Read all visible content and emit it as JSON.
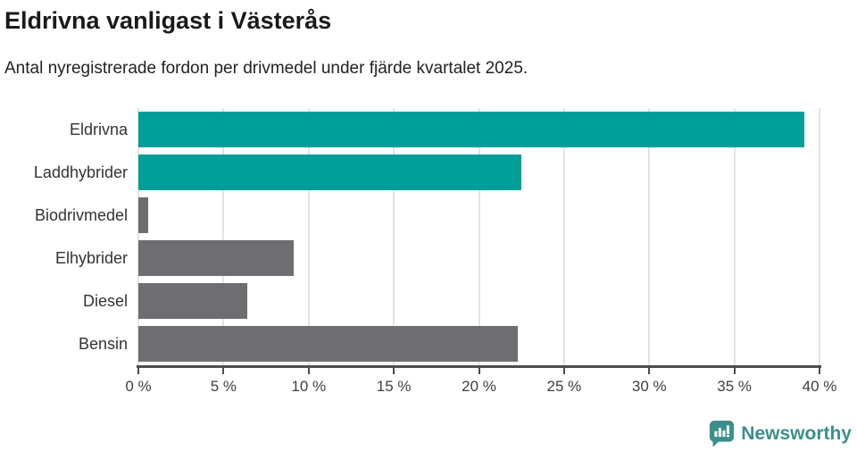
{
  "header": {
    "title": "Eldrivna vanligast i Västerås",
    "subtitle": "Antal nyregistrerade fordon per drivmedel under fjärde kvartalet 2025."
  },
  "chart_data": {
    "type": "bar",
    "orientation": "horizontal",
    "title": "Eldrivna vanligast i Västerås",
    "subtitle": "Antal nyregistrerade fordon per drivmedel under fjärde kvartalet 2025.",
    "categories": [
      "Eldrivna",
      "Laddhybrider",
      "Biodrivmedel",
      "Elhybrider",
      "Diesel",
      "Bensin"
    ],
    "values": [
      39.1,
      22.5,
      0.6,
      9.1,
      6.4,
      22.3
    ],
    "unit": "%",
    "xlim": [
      0,
      40
    ],
    "x_ticks": [
      0,
      5,
      10,
      15,
      20,
      25,
      30,
      35,
      40
    ],
    "x_tick_labels": [
      "0 %",
      "5 %",
      "10 %",
      "15 %",
      "20 %",
      "25 %",
      "30 %",
      "35 %",
      "40 %"
    ],
    "grid": "vertical",
    "legend": "none",
    "bar_colors": [
      "#009E99",
      "#009E99",
      "#6D6D72",
      "#6D6D72",
      "#6D6D72",
      "#6D6D72"
    ],
    "highlight_color": "#009E99",
    "default_color": "#6D6D72",
    "gridline_color": "#E3E3E3",
    "axis_color": "#4D4D4D"
  },
  "footer": {
    "brand": "Newsworthy",
    "logo_color": "#3B8F8D"
  }
}
